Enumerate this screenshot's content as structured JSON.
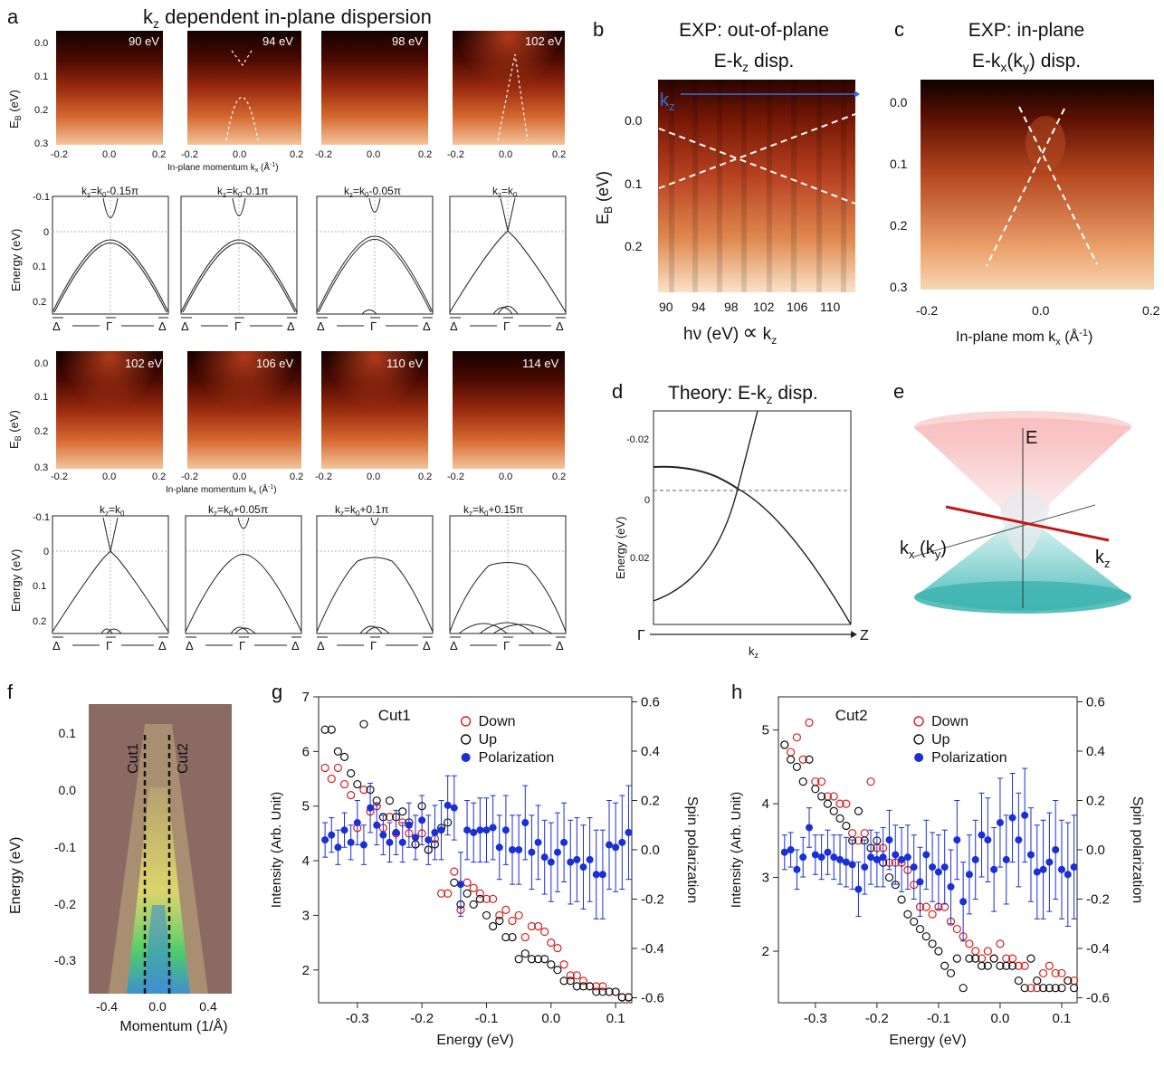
{
  "colors": {
    "arpes_dark": "#1a0200",
    "arpes_mid": "#b5391a",
    "arpes_bright": "#f6c89a",
    "theory_line": "#222222",
    "down_marker": "#d81e1e",
    "up_marker": "#111111",
    "pol_marker": "#1a2fd6",
    "kz_arrow": "#2f6fe0",
    "cone_top": "#f7b9b9",
    "cone_bottom": "#4cc3bf",
    "kz_line": "#c01818",
    "fs_brown": "#8a6a63",
    "fs_yellow": "#e8e66a",
    "fs_green": "#4ecb6c"
  },
  "panel_a": {
    "letter": "a",
    "title_k": "k",
    "title_sub": "z",
    "title_rest": " dependent in-plane dispersion",
    "eb_label_E": "E",
    "eb_label_sub": "B",
    "eb_label_unit": " (eV)",
    "energy_label": "Energy (eV)",
    "eb_ticks": [
      "0.0",
      "0.1",
      "0.2",
      "0.3"
    ],
    "energy_ticks": [
      "-0.1",
      "0",
      "0.1",
      "0.2"
    ],
    "k_ticks": [
      "-0.2",
      "0.0",
      "0.2"
    ],
    "xlabel_text": "In-plane momentum k",
    "xlabel_sub": "x",
    "xlabel_unit": " (Å",
    "xlabel_sup": "-1",
    "xlabel_end": ")",
    "row1_energies": [
      "90 eV",
      "94 eV",
      "98 eV",
      "102 eV"
    ],
    "row3_energies": [
      "102 eV",
      "106 eV",
      "110 eV",
      "114 eV"
    ],
    "hs_delta": "Δ",
    "hs_gamma": "Γ",
    "row2_titles": [
      {
        "k": "k",
        "z": "z",
        "eq": "=k",
        "o": "0",
        "rest": "-0.15π"
      },
      {
        "k": "k",
        "z": "z",
        "eq": "=k",
        "o": "0",
        "rest": "-0.1π"
      },
      {
        "k": "k",
        "z": "z",
        "eq": "=k",
        "o": "0",
        "rest": "-0.05π"
      },
      {
        "k": "k",
        "z": "z",
        "eq": "=k",
        "o": "0",
        "rest": ""
      }
    ],
    "row4_titles": [
      {
        "k": "k",
        "z": "z",
        "eq": "=k",
        "o": "0",
        "rest": ""
      },
      {
        "k": "k",
        "z": "z",
        "eq": "=k",
        "o": "0",
        "rest": "+0.05π"
      },
      {
        "k": "k",
        "z": "z",
        "eq": "=k",
        "o": "0",
        "rest": "+0.1π"
      },
      {
        "k": "k",
        "z": "z",
        "eq": "=k",
        "o": "0",
        "rest": "+0.15π"
      }
    ]
  },
  "panel_b": {
    "letter": "b",
    "title1": "EXP: out-of-plane",
    "title2a": "E-k",
    "title2sub": "z",
    "title2b": " disp.",
    "kz_label_k": "k",
    "kz_label_sub": "z",
    "ylabel_E": "E",
    "ylabel_sub": "B",
    "ylabel_unit": " (eV)",
    "y_ticks": [
      "0.0",
      "0.1",
      "0.2"
    ],
    "x_ticks": [
      "90",
      "94",
      "98",
      "102",
      "106",
      "110"
    ],
    "xlabel_a": "hν (eV)",
    "xlabel_prop": "∝",
    "xlabel_k": " k",
    "xlabel_sub": "z"
  },
  "panel_c": {
    "letter": "c",
    "title1": "EXP: in-plane",
    "title2a": "E-k",
    "title2sub1": "x",
    "title2b": "(k",
    "title2sub2": "y",
    "title2c": ") disp.",
    "y_ticks": [
      "0.0",
      "0.1",
      "0.2",
      "0.3"
    ],
    "x_ticks": [
      "-0.2",
      "0.0",
      "0.2"
    ],
    "xlabel_a": "In-plane mom k",
    "xlabel_sub": "x",
    "xlabel_b": " (Å",
    "xlabel_sup": "-1",
    "xlabel_c": ")"
  },
  "panel_d": {
    "letter": "d",
    "title_a": "Theory: E-k",
    "title_sub": "z",
    "title_b": " disp.",
    "ylabel": "Energy (eV)",
    "y_ticks": [
      "-0.02",
      "0",
      "0.02"
    ],
    "gamma": "Γ",
    "z": "Z",
    "xlabel_k": "k",
    "xlabel_sub": "z"
  },
  "panel_e": {
    "letter": "e",
    "E": "E",
    "kx_a": "k",
    "kx_sub": "x",
    "kx_b": " (k",
    "kx_sub2": "y",
    "kx_c": ")",
    "kz_a": "k",
    "kz_sub": "z"
  },
  "panel_f": {
    "letter": "f",
    "ylabel": "Energy (eV)",
    "xlabel": "Momentum (1/Å)",
    "y_ticks": [
      "0.1",
      "0.0",
      "-0.1",
      "-0.2",
      "-0.3"
    ],
    "x_ticks": [
      "-0.4",
      "0.0",
      "0.4"
    ],
    "cut1": "Cut1",
    "cut2": "Cut2"
  },
  "chart_data": [
    {
      "id": "panel_g",
      "letter": "g",
      "type": "scatter",
      "title": "Cut1",
      "xlabel": "Energy (eV)",
      "ylabel": "Intensity (Arb. Unit)",
      "y2label": "Spin polarization",
      "xlim": [
        -0.36,
        0.125
      ],
      "ylim": [
        1.4,
        7.0
      ],
      "y2lim": [
        -0.62,
        0.62
      ],
      "x_ticks": [
        "-0.3",
        "-0.2",
        "-0.1",
        "0.0",
        "0.1"
      ],
      "y_ticks": [
        "2",
        "3",
        "4",
        "5",
        "6",
        "7"
      ],
      "y2_ticks": [
        "0.6",
        "0.4",
        "0.2",
        "0.0",
        "-0.2",
        "-0.4",
        "-0.6"
      ],
      "legend": [
        "Down",
        "Up",
        "Polarization"
      ],
      "series": [
        {
          "name": "Down",
          "x": [
            -0.35,
            -0.34,
            -0.33,
            -0.32,
            -0.31,
            -0.3,
            -0.29,
            -0.28,
            -0.27,
            -0.26,
            -0.25,
            -0.24,
            -0.23,
            -0.22,
            -0.21,
            -0.2,
            -0.19,
            -0.18,
            -0.17,
            -0.16,
            -0.15,
            -0.14,
            -0.13,
            -0.12,
            -0.11,
            -0.1,
            -0.09,
            -0.08,
            -0.07,
            -0.06,
            -0.05,
            -0.04,
            -0.03,
            -0.02,
            -0.01,
            0.0,
            0.01,
            0.02,
            0.03,
            0.04,
            0.05,
            0.06,
            0.07,
            0.08,
            0.09,
            0.1,
            0.11,
            0.12
          ],
          "values": [
            5.7,
            5.5,
            5.7,
            5.4,
            5.2,
            4.6,
            5.3,
            4.9,
            5.0,
            4.6,
            4.8,
            4.5,
            4.7,
            4.5,
            4.3,
            4.5,
            4.2,
            4.4,
            3.4,
            3.4,
            3.8,
            3.1,
            3.6,
            3.5,
            3.4,
            3.3,
            3.3,
            3.0,
            3.1,
            2.9,
            3.0,
            2.6,
            2.8,
            2.8,
            2.7,
            2.5,
            2.4,
            2.1,
            1.9,
            1.9,
            1.8,
            1.7,
            1.7,
            1.7,
            1.6,
            1.6,
            1.5,
            1.5
          ]
        },
        {
          "name": "Up",
          "x": [
            -0.35,
            -0.34,
            -0.33,
            -0.32,
            -0.31,
            -0.3,
            -0.29,
            -0.28,
            -0.27,
            -0.26,
            -0.25,
            -0.24,
            -0.23,
            -0.22,
            -0.21,
            -0.2,
            -0.19,
            -0.18,
            -0.17,
            -0.16,
            -0.15,
            -0.14,
            -0.13,
            -0.12,
            -0.11,
            -0.1,
            -0.09,
            -0.08,
            -0.07,
            -0.06,
            -0.05,
            -0.04,
            -0.03,
            -0.02,
            -0.01,
            0.0,
            0.01,
            0.02,
            0.03,
            0.04,
            0.05,
            0.06,
            0.07,
            0.08,
            0.09,
            0.1,
            0.11,
            0.12
          ],
          "values": [
            6.4,
            6.4,
            6.0,
            5.9,
            5.6,
            5.4,
            6.5,
            5.3,
            5.1,
            4.8,
            5.1,
            4.8,
            4.9,
            4.7,
            4.3,
            5.0,
            4.2,
            4.3,
            4.6,
            4.7,
            3.6,
            3.2,
            3.4,
            3.2,
            3.3,
            3.0,
            2.8,
            2.9,
            2.6,
            2.6,
            2.2,
            2.3,
            2.2,
            2.2,
            2.2,
            2.1,
            2.0,
            1.8,
            1.8,
            1.7,
            1.7,
            1.7,
            1.6,
            1.6,
            1.6,
            1.6,
            1.5,
            1.5
          ]
        },
        {
          "name": "Polarization",
          "axis": "y2",
          "x": [
            -0.35,
            -0.34,
            -0.33,
            -0.32,
            -0.31,
            -0.3,
            -0.29,
            -0.28,
            -0.27,
            -0.26,
            -0.25,
            -0.24,
            -0.23,
            -0.22,
            -0.21,
            -0.2,
            -0.19,
            -0.18,
            -0.17,
            -0.16,
            -0.15,
            -0.14,
            -0.13,
            -0.12,
            -0.11,
            -0.1,
            -0.09,
            -0.08,
            -0.07,
            -0.06,
            -0.05,
            -0.04,
            -0.03,
            -0.02,
            -0.01,
            0.0,
            0.01,
            0.02,
            0.03,
            0.04,
            0.05,
            0.06,
            0.07,
            0.08,
            0.09,
            0.1,
            0.11,
            0.12
          ],
          "values": [
            0.04,
            0.06,
            0.01,
            0.08,
            0.03,
            0.11,
            0.02,
            0.17,
            0.1,
            0.06,
            0.03,
            0.07,
            0.03,
            0.1,
            0.05,
            0.12,
            0.04,
            0.07,
            0.08,
            0.18,
            0.17,
            -0.14,
            0.08,
            0.07,
            0.08,
            0.08,
            0.09,
            0.01,
            0.08,
            0.0,
            0.0,
            0.11,
            -0.01,
            0.03,
            -0.03,
            -0.05,
            -0.01,
            0.03,
            -0.05,
            -0.04,
            -0.07,
            -0.04,
            -0.1,
            -0.1,
            0.02,
            0.01,
            0.03,
            0.07
          ],
          "errors": [
            0.07,
            0.07,
            0.07,
            0.07,
            0.07,
            0.09,
            0.08,
            0.1,
            0.08,
            0.08,
            0.08,
            0.09,
            0.08,
            0.09,
            0.09,
            0.1,
            0.1,
            0.11,
            0.12,
            0.12,
            0.13,
            0.13,
            0.12,
            0.12,
            0.13,
            0.13,
            0.13,
            0.13,
            0.14,
            0.14,
            0.14,
            0.15,
            0.15,
            0.15,
            0.15,
            0.16,
            0.16,
            0.16,
            0.17,
            0.17,
            0.17,
            0.17,
            0.18,
            0.18,
            0.18,
            0.18,
            0.19,
            0.19
          ]
        }
      ]
    },
    {
      "id": "panel_h",
      "letter": "h",
      "type": "scatter",
      "title": "Cut2",
      "xlabel": "Energy (eV)",
      "ylabel": "Intensity (Arb. Unit)",
      "y2label": "Spin polarization",
      "xlim": [
        -0.36,
        0.125
      ],
      "ylim": [
        1.3,
        5.45
      ],
      "y2lim": [
        -0.62,
        0.62
      ],
      "x_ticks": [
        "-0.3",
        "-0.2",
        "-0.1",
        "0.0",
        "0.1"
      ],
      "y_ticks": [
        "2",
        "3",
        "4",
        "5"
      ],
      "y2_ticks": [
        "0.6",
        "0.4",
        "0.2",
        "0.0",
        "-0.2",
        "-0.4",
        "-0.6"
      ],
      "legend": [
        "Down",
        "Up",
        "Polarization"
      ],
      "series": [
        {
          "name": "Down",
          "x": [
            -0.35,
            -0.34,
            -0.33,
            -0.32,
            -0.31,
            -0.3,
            -0.29,
            -0.28,
            -0.27,
            -0.26,
            -0.25,
            -0.24,
            -0.23,
            -0.22,
            -0.21,
            -0.2,
            -0.19,
            -0.18,
            -0.17,
            -0.16,
            -0.15,
            -0.14,
            -0.13,
            -0.12,
            -0.11,
            -0.1,
            -0.09,
            -0.08,
            -0.07,
            -0.06,
            -0.05,
            -0.04,
            -0.03,
            -0.02,
            -0.01,
            0.0,
            0.01,
            0.02,
            0.03,
            0.04,
            0.05,
            0.06,
            0.07,
            0.08,
            0.09,
            0.1,
            0.11,
            0.12
          ],
          "values": [
            4.8,
            4.7,
            4.9,
            4.6,
            5.1,
            4.3,
            4.3,
            4.1,
            4.1,
            4.0,
            4.0,
            3.6,
            3.5,
            3.6,
            4.3,
            3.4,
            3.4,
            3.2,
            3.2,
            3.2,
            3.1,
            2.9,
            2.6,
            2.6,
            2.5,
            2.6,
            2.6,
            2.4,
            2.3,
            2.2,
            2.1,
            2.0,
            1.9,
            2.0,
            1.9,
            2.1,
            1.9,
            1.9,
            1.8,
            1.8,
            1.5,
            1.5,
            1.7,
            1.8,
            1.7,
            1.7,
            1.6,
            1.6
          ]
        },
        {
          "name": "Up",
          "x": [
            -0.35,
            -0.34,
            -0.33,
            -0.32,
            -0.31,
            -0.3,
            -0.29,
            -0.28,
            -0.27,
            -0.26,
            -0.25,
            -0.24,
            -0.23,
            -0.22,
            -0.21,
            -0.2,
            -0.19,
            -0.18,
            -0.17,
            -0.16,
            -0.15,
            -0.14,
            -0.13,
            -0.12,
            -0.11,
            -0.1,
            -0.09,
            -0.08,
            -0.07,
            -0.06,
            -0.05,
            -0.04,
            -0.03,
            -0.02,
            -0.01,
            0.0,
            0.01,
            0.02,
            0.03,
            0.04,
            0.05,
            0.06,
            0.07,
            0.08,
            0.09,
            0.1,
            0.11,
            0.12
          ],
          "values": [
            4.8,
            4.6,
            4.5,
            4.3,
            4.6,
            4.2,
            4.1,
            4.0,
            3.9,
            3.8,
            3.7,
            3.5,
            3.9,
            3.5,
            3.4,
            3.5,
            3.2,
            3.0,
            2.9,
            2.7,
            2.5,
            2.4,
            2.3,
            2.2,
            2.1,
            2.0,
            1.8,
            1.7,
            1.9,
            1.5,
            1.9,
            1.9,
            1.8,
            1.8,
            1.9,
            1.8,
            1.8,
            1.8,
            1.6,
            1.5,
            1.9,
            1.6,
            1.5,
            1.5,
            1.5,
            1.5,
            1.6,
            1.5
          ]
        },
        {
          "name": "Polarization",
          "axis": "y2",
          "x": [
            -0.35,
            -0.34,
            -0.33,
            -0.32,
            -0.31,
            -0.3,
            -0.29,
            -0.28,
            -0.27,
            -0.26,
            -0.25,
            -0.24,
            -0.23,
            -0.22,
            -0.21,
            -0.2,
            -0.19,
            -0.18,
            -0.17,
            -0.16,
            -0.15,
            -0.14,
            -0.13,
            -0.12,
            -0.11,
            -0.1,
            -0.09,
            -0.08,
            -0.07,
            -0.06,
            -0.05,
            -0.04,
            -0.03,
            -0.02,
            -0.01,
            0.0,
            0.01,
            0.02,
            0.03,
            0.04,
            0.05,
            0.06,
            0.07,
            0.08,
            0.09,
            0.1,
            0.11,
            0.12
          ],
          "values": [
            -0.01,
            0.0,
            -0.08,
            -0.03,
            0.09,
            -0.02,
            -0.03,
            -0.01,
            -0.03,
            -0.04,
            -0.05,
            -0.06,
            -0.16,
            -0.07,
            -0.03,
            -0.04,
            -0.03,
            0.04,
            -0.02,
            -0.04,
            -0.03,
            -0.07,
            -0.13,
            -0.02,
            -0.07,
            -0.09,
            -0.07,
            -0.15,
            0.04,
            -0.21,
            -0.1,
            -0.04,
            0.06,
            0.04,
            -0.08,
            0.11,
            -0.04,
            0.13,
            0.04,
            0.14,
            -0.02,
            -0.09,
            -0.08,
            -0.05,
            0.0,
            -0.08,
            -0.1,
            -0.07
          ],
          "errors": [
            0.07,
            0.07,
            0.08,
            0.08,
            0.08,
            0.08,
            0.09,
            0.09,
            0.09,
            0.1,
            0.1,
            0.1,
            0.11,
            0.11,
            0.11,
            0.11,
            0.12,
            0.12,
            0.12,
            0.13,
            0.13,
            0.13,
            0.14,
            0.14,
            0.14,
            0.15,
            0.15,
            0.15,
            0.16,
            0.16,
            0.16,
            0.16,
            0.17,
            0.17,
            0.17,
            0.18,
            0.18,
            0.18,
            0.19,
            0.19,
            0.19,
            0.19,
            0.2,
            0.2,
            0.2,
            0.2,
            0.21,
            0.21
          ]
        }
      ]
    }
  ]
}
